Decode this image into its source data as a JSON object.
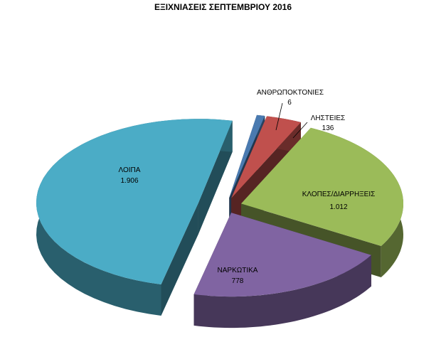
{
  "chart_data": {
    "type": "pie",
    "title": "ΕΞΙΧΝΙΑΣΕΙΣ ΣΕΠΤΕΜΒΡΙΟΥ 2016",
    "slices": [
      {
        "label": "ΑΝΘΡΩΠΟΚΤΟΝΙΕΣ",
        "value": 6,
        "display": "6",
        "color": "#4a7ab0"
      },
      {
        "label": "ΛΗΣΤΕΙΕΣ",
        "value": 136,
        "display": "136",
        "color": "#c0504d"
      },
      {
        "label": "ΚΛΟΠΕΣ/ΔΙΑΡΡΗΞΕΙΣ",
        "value": 1012,
        "display": "1.012",
        "color": "#9bbb59"
      },
      {
        "label": "ΝΑΡΚΩΤΙΚΑ",
        "value": 778,
        "display": "778",
        "color": "#8064a2"
      },
      {
        "label": "ΛΟΙΠΑ",
        "value": 1906,
        "display": "1.906",
        "color": "#4bacc6"
      }
    ],
    "exploded": true,
    "legend": "none"
  }
}
